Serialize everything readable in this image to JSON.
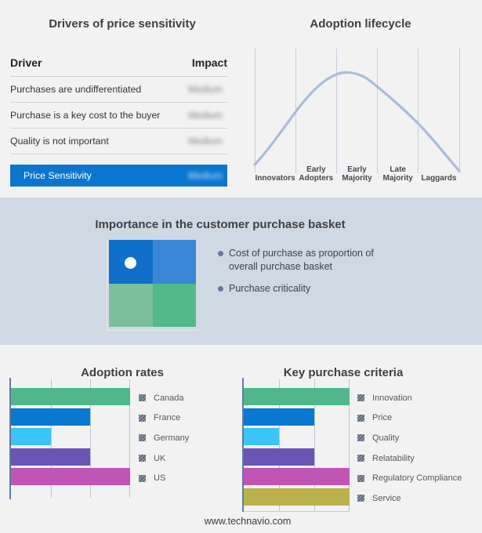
{
  "page": {
    "background": "#f2f2f3",
    "footer": "www.technavio.com"
  },
  "drivers_panel": {
    "title": "Drivers of price sensitivity",
    "table": {
      "columns": [
        "Driver",
        "Impact"
      ],
      "rows": [
        {
          "driver": "Purchases are undifferentiated",
          "impact": "Medium"
        },
        {
          "driver": "Purchase is a key cost to the buyer",
          "impact": "Medium"
        },
        {
          "driver": "Quality is not important",
          "impact": "Medium"
        }
      ],
      "highlight_row": {
        "driver": "Price Sensitivity",
        "impact": "Medium"
      },
      "highlight_color": "#0b76cf",
      "impact_values_blurred": true
    }
  },
  "basket_panel": {
    "title": "Importance in the customer purchase basket",
    "band_color": "#cfd9e4",
    "bullets": [
      "Cost of purchase as proportion of overall purchase basket",
      "Purchase criticality"
    ],
    "quadrant": {
      "top_left": "#1070c9",
      "top_right": "#3a87d6",
      "bottom_left": "#7cbf9b",
      "bottom_right": "#52ba88",
      "marker_color": "#ffffff"
    }
  },
  "chart_data": [
    {
      "id": "adoption-lifecycle",
      "type": "line",
      "title": "Adoption lifecycle",
      "shape": "bell-curve",
      "categories": [
        "Innovators",
        "Early Adopters",
        "Early Majority",
        "Late Majority",
        "Laggards"
      ],
      "curve_peak_category": "Early Majority",
      "curve_color": "#aabdd7",
      "axes": "no numeric axes; five segments divided by vertical gridlines"
    },
    {
      "id": "adoption-rates",
      "type": "bar",
      "orientation": "horizontal",
      "title": "Adoption rates",
      "categories": [
        "Canada",
        "France",
        "Germany",
        "UK",
        "US"
      ],
      "values": [
        3,
        2,
        1,
        2,
        3
      ],
      "xlim": [
        0,
        3
      ],
      "value_scale": "gridline units (no numeric labels shown)",
      "colors": [
        "#4eb88c",
        "#0878d0",
        "#3cc3f7",
        "#6a54b4",
        "#c254b6"
      ],
      "legend_position": "right",
      "gridlines": true
    },
    {
      "id": "key-purchase-criteria",
      "type": "bar",
      "orientation": "horizontal",
      "title": "Key purchase criteria",
      "categories": [
        "Innovation",
        "Price",
        "Quality",
        "Relatability",
        "Regulatory Compliance",
        "Service"
      ],
      "values": [
        3,
        2,
        1,
        2,
        3,
        3
      ],
      "xlim": [
        0,
        3
      ],
      "value_scale": "gridline units (no numeric labels shown)",
      "colors": [
        "#4eb88c",
        "#0878d0",
        "#3cc3f7",
        "#6a54b4",
        "#c254b6",
        "#bab14a"
      ],
      "legend_position": "right",
      "gridlines": true
    }
  ]
}
